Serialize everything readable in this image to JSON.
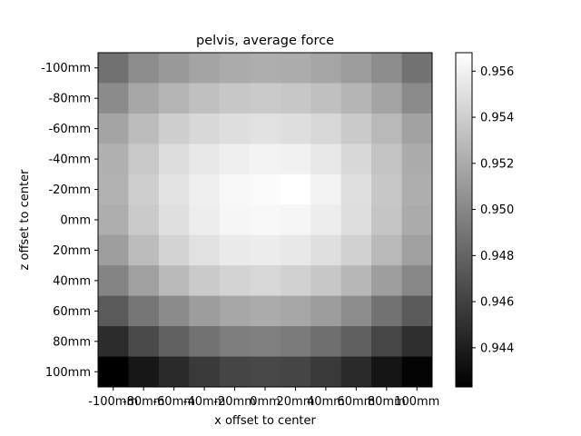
{
  "chart_data": {
    "type": "heatmap",
    "title": "pelvis, average force",
    "xlabel": "x offset to center",
    "ylabel": "z offset to center",
    "x_categories": [
      "-100mm",
      "-80mm",
      "-60mm",
      "-40mm",
      "-20mm",
      "0mm",
      "20mm",
      "40mm",
      "60mm",
      "80mm",
      "100mm"
    ],
    "y_categories": [
      "-100mm",
      "-80mm",
      "-60mm",
      "-40mm",
      "-20mm",
      "0mm",
      "20mm",
      "40mm",
      "60mm",
      "80mm",
      "100mm"
    ],
    "values": [
      [
        0.9487,
        0.9503,
        0.951,
        0.9516,
        0.952,
        0.9522,
        0.9521,
        0.9517,
        0.9512,
        0.9503,
        0.9488
      ],
      [
        0.9502,
        0.9518,
        0.9526,
        0.9532,
        0.9536,
        0.9538,
        0.9536,
        0.9532,
        0.9526,
        0.9516,
        0.9502
      ],
      [
        0.9516,
        0.953,
        0.954,
        0.9546,
        0.9549,
        0.9551,
        0.9549,
        0.9545,
        0.9538,
        0.9528,
        0.9515
      ],
      [
        0.9523,
        0.9537,
        0.9548,
        0.9555,
        0.9559,
        0.9561,
        0.956,
        0.9555,
        0.9546,
        0.9534,
        0.952
      ],
      [
        0.9524,
        0.954,
        0.9552,
        0.9559,
        0.9564,
        0.9566,
        0.9568,
        0.9561,
        0.955,
        0.9536,
        0.9522
      ],
      [
        0.9522,
        0.9538,
        0.955,
        0.9558,
        0.9563,
        0.9564,
        0.9563,
        0.9558,
        0.9549,
        0.9535,
        0.952
      ],
      [
        0.9513,
        0.953,
        0.9543,
        0.9551,
        0.9556,
        0.9557,
        0.9555,
        0.955,
        0.9542,
        0.9528,
        0.9514
      ],
      [
        0.9498,
        0.9514,
        0.9528,
        0.9538,
        0.9543,
        0.9545,
        0.9542,
        0.9536,
        0.9527,
        0.9513,
        0.95
      ],
      [
        0.9474,
        0.949,
        0.9502,
        0.9512,
        0.9518,
        0.952,
        0.9518,
        0.9512,
        0.9503,
        0.9488,
        0.9475
      ],
      [
        0.9448,
        0.9465,
        0.9478,
        0.9488,
        0.9494,
        0.9496,
        0.9493,
        0.9486,
        0.9477,
        0.9463,
        0.945
      ],
      [
        0.9423,
        0.9436,
        0.9447,
        0.9456,
        0.9462,
        0.9464,
        0.9462,
        0.9456,
        0.9447,
        0.9435,
        0.9425
      ]
    ],
    "vmin": 0.9423,
    "vmax": 0.9568,
    "colormap": "gray",
    "colorbar_ticks": [
      "0.944",
      "0.946",
      "0.948",
      "0.950",
      "0.952",
      "0.954",
      "0.956"
    ],
    "grid": false
  }
}
